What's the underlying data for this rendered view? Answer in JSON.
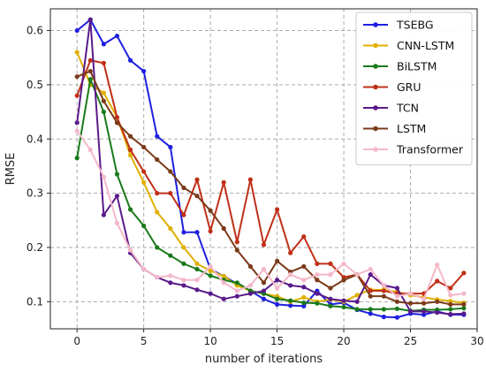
{
  "chart_data": {
    "type": "line",
    "xlabel": "number of iterations",
    "ylabel": "RMSE",
    "xlim": [
      -2,
      30
    ],
    "ylim": [
      0.05,
      0.64
    ],
    "x_ticks": [
      0,
      5,
      10,
      15,
      20,
      25,
      30
    ],
    "y_ticks": [
      0.1,
      0.2,
      0.3,
      0.4,
      0.5,
      0.6
    ],
    "x_tick_labels": [
      "0",
      "5",
      "10",
      "15",
      "20",
      "25",
      "30"
    ],
    "y_tick_labels": [
      "0.1",
      "0.2",
      "0.3",
      "0.4",
      "0.5",
      "0.6"
    ],
    "grid": true,
    "legend_position": "top-right",
    "x": [
      0,
      1,
      2,
      3,
      4,
      5,
      6,
      7,
      8,
      9,
      10,
      11,
      12,
      13,
      14,
      15,
      16,
      17,
      18,
      19,
      20,
      21,
      22,
      23,
      24,
      25,
      26,
      27,
      28,
      29
    ],
    "series": [
      {
        "name": "TSEBG",
        "color": "#1f1fe0",
        "values": [
          0.6,
          0.62,
          0.575,
          0.59,
          0.545,
          0.525,
          0.405,
          0.385,
          0.228,
          0.228,
          0.16,
          0.147,
          0.133,
          0.12,
          0.105,
          0.095,
          0.093,
          0.092,
          0.12,
          0.095,
          0.098,
          0.085,
          0.078,
          0.072,
          0.071,
          0.078,
          0.076,
          0.082,
          0.076,
          0.076
        ]
      },
      {
        "name": "CNN-LSTM",
        "color": "#e0b000",
        "values": [
          0.56,
          0.5,
          0.485,
          0.44,
          0.37,
          0.32,
          0.265,
          0.235,
          0.2,
          0.17,
          0.157,
          0.147,
          0.13,
          0.12,
          0.115,
          0.11,
          0.1,
          0.108,
          0.1,
          0.104,
          0.1,
          0.112,
          0.122,
          0.122,
          0.118,
          0.112,
          0.108,
          0.104,
          0.101,
          0.098
        ]
      },
      {
        "name": "BiLSTM",
        "color": "#1a7a1a",
        "values": [
          0.365,
          0.51,
          0.45,
          0.335,
          0.27,
          0.24,
          0.2,
          0.185,
          0.17,
          0.16,
          0.148,
          0.14,
          0.135,
          0.12,
          0.115,
          0.105,
          0.102,
          0.098,
          0.097,
          0.092,
          0.09,
          0.086,
          0.086,
          0.086,
          0.087,
          0.083,
          0.085,
          0.085,
          0.086,
          0.088
        ]
      },
      {
        "name": "GRU",
        "color": "#c03018",
        "values": [
          0.48,
          0.545,
          0.54,
          0.44,
          0.38,
          0.34,
          0.3,
          0.3,
          0.26,
          0.325,
          0.23,
          0.32,
          0.21,
          0.325,
          0.205,
          0.27,
          0.19,
          0.22,
          0.17,
          0.17,
          0.145,
          0.15,
          0.12,
          0.12,
          0.115,
          0.115,
          0.115,
          0.138,
          0.125,
          0.153
        ]
      },
      {
        "name": "TCN",
        "color": "#5a1a8a",
        "values": [
          0.43,
          0.62,
          0.26,
          0.295,
          0.19,
          0.16,
          0.145,
          0.135,
          0.13,
          0.122,
          0.115,
          0.105,
          0.11,
          0.115,
          0.12,
          0.14,
          0.13,
          0.127,
          0.115,
          0.105,
          0.102,
          0.1,
          0.15,
          0.13,
          0.125,
          0.082,
          0.082,
          0.08,
          0.077,
          0.078
        ]
      },
      {
        "name": "LSTM",
        "color": "#7a3a1a",
        "values": [
          0.515,
          0.525,
          0.47,
          0.43,
          0.405,
          0.385,
          0.362,
          0.34,
          0.31,
          0.295,
          0.268,
          0.235,
          0.195,
          0.165,
          0.135,
          0.175,
          0.155,
          0.165,
          0.14,
          0.125,
          0.14,
          0.15,
          0.11,
          0.11,
          0.1,
          0.097,
          0.097,
          0.1,
          0.095,
          0.095
        ]
      },
      {
        "name": "Transformer",
        "color": "#f4b8c8",
        "values": [
          0.415,
          0.38,
          0.33,
          0.245,
          0.195,
          0.16,
          0.145,
          0.148,
          0.14,
          0.14,
          0.165,
          0.135,
          0.12,
          0.13,
          0.16,
          0.125,
          0.15,
          0.14,
          0.15,
          0.15,
          0.17,
          0.15,
          0.16,
          0.13,
          0.11,
          0.115,
          0.105,
          0.168,
          0.112,
          0.115
        ]
      }
    ]
  }
}
